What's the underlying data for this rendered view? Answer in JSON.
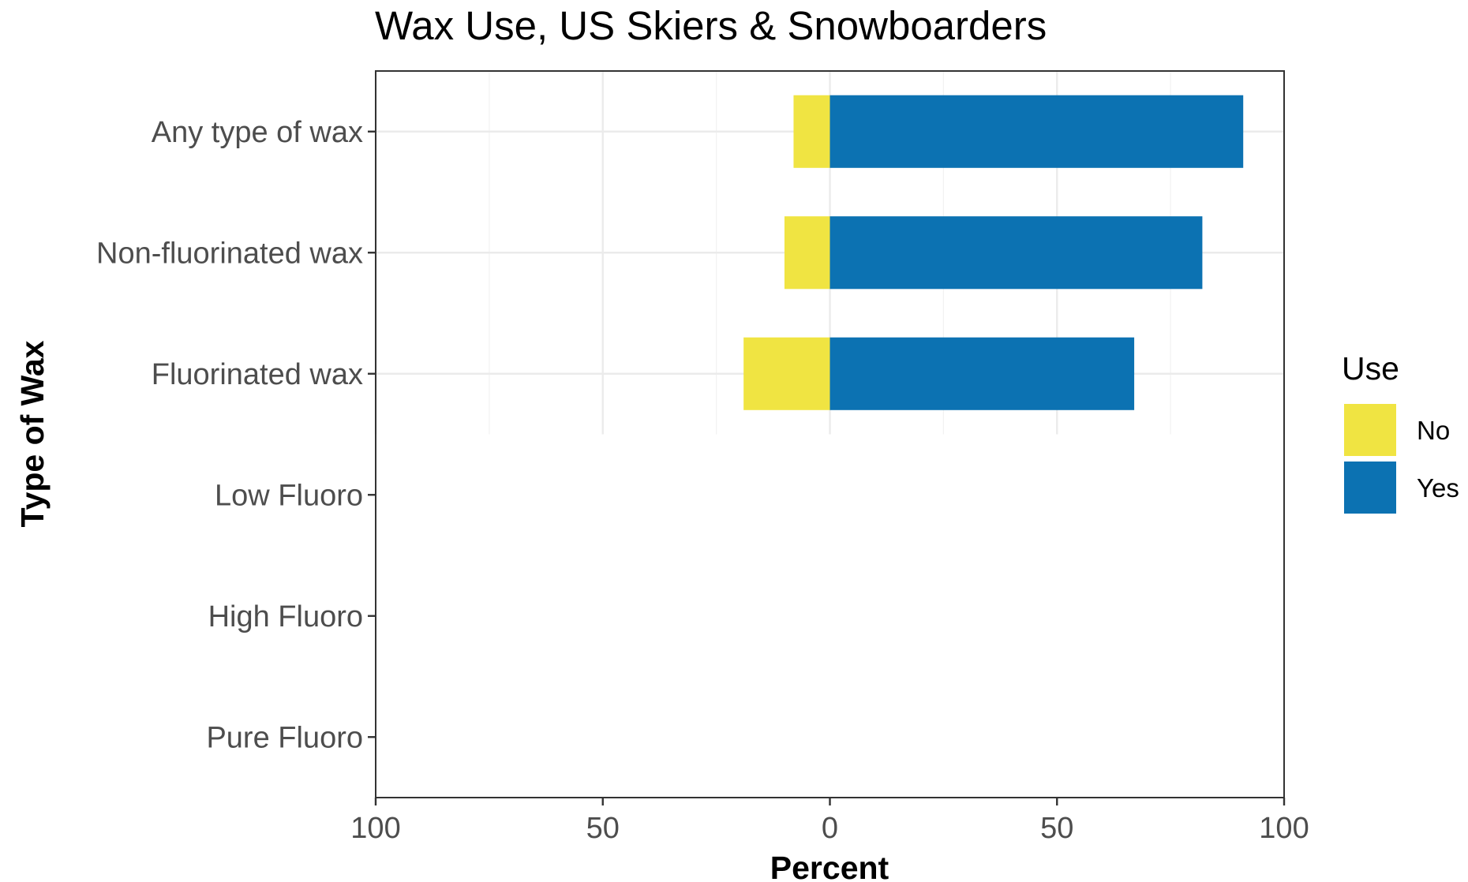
{
  "chart_data": {
    "type": "bar",
    "orientation": "horizontal",
    "stacking": "diverging",
    "title": "Wax Use, US Skiers & Snowboarders",
    "xlabel": "Percent",
    "ylabel": "Type of Wax",
    "categories": [
      "Any type of wax",
      "Non-fluorinated wax",
      "Fluorinated wax",
      "Low Fluoro",
      "High Fluoro",
      "Pure Fluoro"
    ],
    "xlim": [
      -100,
      100
    ],
    "x_ticks": [
      -100,
      -50,
      0,
      50,
      100
    ],
    "x_tick_labels": [
      "100",
      "50",
      "0",
      "50",
      "100"
    ],
    "grid": true,
    "legend": {
      "title": "Use",
      "position": "right",
      "entries": [
        "No",
        "Yes"
      ]
    },
    "series": [
      {
        "name": "No",
        "color": "#F0E442",
        "direction": "left",
        "values": [
          8,
          10,
          19,
          null,
          null,
          null
        ]
      },
      {
        "name": "Yes",
        "color": "#0C72B2",
        "direction": "right",
        "values": [
          91,
          82,
          67,
          null,
          null,
          null
        ]
      }
    ]
  }
}
